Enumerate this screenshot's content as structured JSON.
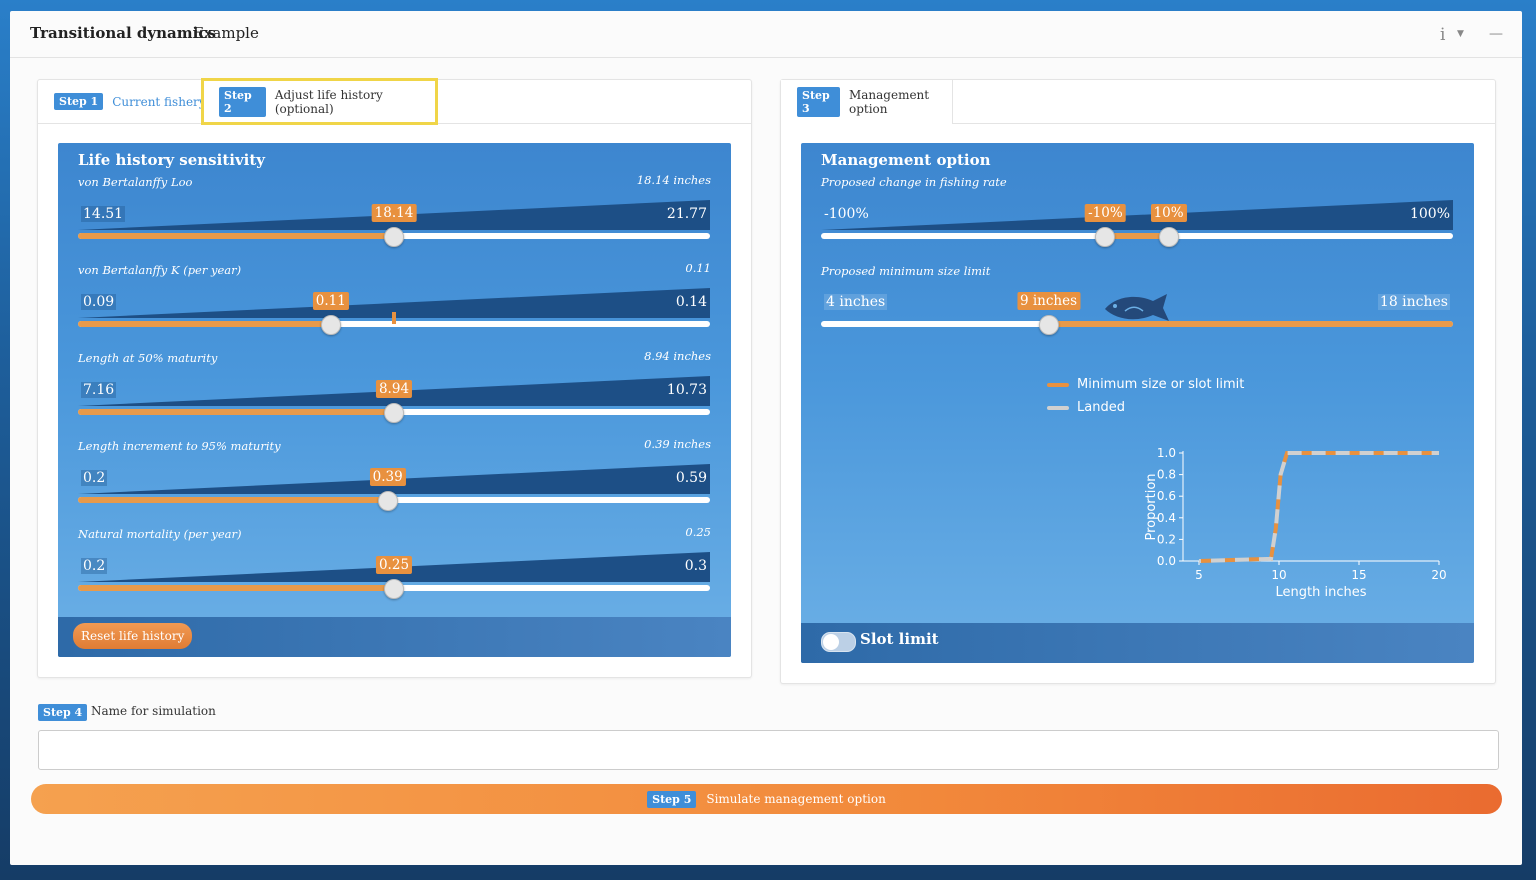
{
  "app": {
    "title": "Transitional dynamics",
    "subtitle": "Example",
    "info_icon": "info-icon",
    "minimize_icon": "minimize-icon"
  },
  "left_tabs": [
    {
      "badge": "Step 1",
      "label": "Current fishery"
    },
    {
      "badge": "Step 2",
      "label": "Adjust life history (optional)"
    }
  ],
  "right_tabs": [
    {
      "badge": "Step 3",
      "label": "Management option"
    }
  ],
  "life_history": {
    "title": "Life history sensitivity",
    "sliders": [
      {
        "label": "von Bertalanffy Loo",
        "value_text": "18.14 inches",
        "min": "14.51",
        "max": "21.77",
        "current": "18.14",
        "frac": 0.5
      },
      {
        "label": "von Bertalanffy K (per year)",
        "value_text": "0.11",
        "min": "0.09",
        "max": "0.14",
        "current": "0.11",
        "frac": 0.4,
        "marker_frac": 0.5
      },
      {
        "label": "Length at 50% maturity",
        "value_text": "8.94 inches",
        "min": "7.16",
        "max": "10.73",
        "current": "8.94",
        "frac": 0.5
      },
      {
        "label": "Length increment to 95% maturity",
        "value_text": "0.39 inches",
        "min": "0.2",
        "max": "0.59",
        "current": "0.39",
        "frac": 0.49
      },
      {
        "label": "Natural mortality (per year)",
        "value_text": "0.25",
        "min": "0.2",
        "max": "0.3",
        "current": "0.25",
        "frac": 0.5
      }
    ],
    "reset_label": "Reset life history"
  },
  "management": {
    "title": "Management option",
    "fishing_rate": {
      "label": "Proposed change in fishing rate",
      "min": "-100%",
      "max": "100%",
      "low": "-10%",
      "high": "10%",
      "low_frac": 0.45,
      "high_frac": 0.55
    },
    "size_limit": {
      "label": "Proposed minimum size limit",
      "min": "4 inches",
      "max": "18 inches",
      "current": "9 inches",
      "frac": 0.36,
      "fish_icon": "fish-icon"
    },
    "legend": [
      {
        "label": "Minimum size or slot limit",
        "color": "#e8913f"
      },
      {
        "label": "Landed",
        "color": "#d0d0d0"
      }
    ],
    "slot_limit_label": "Slot limit",
    "slot_limit_on": false
  },
  "chart_data": {
    "type": "line",
    "title": "",
    "xlabel": "Length inches",
    "ylabel": "Proportion",
    "xlim": [
      4,
      20
    ],
    "ylim": [
      0,
      1
    ],
    "xticks": [
      "5",
      "10",
      "15",
      "20"
    ],
    "yticks": [
      "0.0",
      "0.2",
      "0.4",
      "0.6",
      "0.8",
      "1.0"
    ],
    "series": [
      {
        "name": "Minimum size or slot limit",
        "color": "#e8913f",
        "x": [
          5,
          9.5,
          9.8,
          10.1,
          10.5,
          20
        ],
        "y": [
          0,
          0.02,
          0.3,
          0.8,
          1.0,
          1.0
        ]
      },
      {
        "name": "Landed",
        "color": "#d0d0d0",
        "x": [
          5,
          9.5,
          9.8,
          10.1,
          10.5,
          20
        ],
        "y": [
          0,
          0.02,
          0.3,
          0.8,
          1.0,
          1.0
        ]
      }
    ]
  },
  "step4": {
    "badge": "Step 4",
    "label": "Name for simulation",
    "value": "",
    "placeholder": ""
  },
  "step5": {
    "badge": "Step 5",
    "label": "Simulate management option"
  }
}
